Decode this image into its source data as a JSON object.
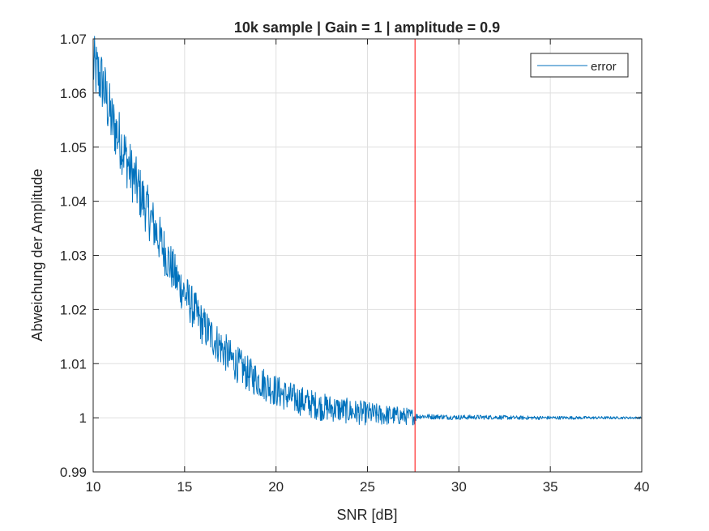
{
  "chart_data": {
    "type": "line",
    "title": "10k sample | Gain = 1 | amplitude = 0.9",
    "xlabel": "SNR [dB]",
    "ylabel": "Abweichung der Amplitude",
    "xlim": [
      10,
      40
    ],
    "ylim": [
      0.99,
      1.07
    ],
    "xticks": [
      10,
      15,
      20,
      25,
      30,
      35,
      40
    ],
    "xtick_labels": [
      "10",
      "15",
      "20",
      "25",
      "30",
      "35",
      "40"
    ],
    "yticks": [
      0.99,
      1.0,
      1.01,
      1.02,
      1.03,
      1.04,
      1.05,
      1.06,
      1.07
    ],
    "ytick_labels": [
      "0.99",
      "1",
      "1.01",
      "1.02",
      "1.03",
      "1.04",
      "1.05",
      "1.06",
      "1.07"
    ],
    "grid": true,
    "legend_position": "top-right",
    "series": [
      {
        "name": "error",
        "color": "#0072BD",
        "x": [
          10,
          10.5,
          11,
          11.5,
          12,
          12.5,
          13,
          13.5,
          14,
          14.5,
          15,
          15.5,
          16,
          16.5,
          17,
          17.5,
          18,
          18.5,
          19,
          19.5,
          20,
          20.5,
          21,
          21.5,
          22,
          22.5,
          23,
          23.5,
          24,
          24.5,
          25,
          25.5,
          26,
          26.5,
          27,
          27.5,
          28,
          28.5,
          29,
          29.5,
          30,
          31,
          32,
          33,
          34,
          35,
          36,
          37,
          38,
          39,
          40
        ],
        "y": [
          1.065,
          1.062,
          1.055,
          1.051,
          1.046,
          1.042,
          1.038,
          1.034,
          1.03,
          1.026,
          1.023,
          1.02,
          1.017,
          1.015,
          1.013,
          1.011,
          1.0095,
          1.008,
          1.007,
          1.006,
          1.005,
          1.0042,
          1.0035,
          1.003,
          1.0025,
          1.002,
          1.0018,
          1.0015,
          1.0012,
          1.001,
          1.0008,
          1.0006,
          1.0005,
          1.0004,
          1.0003,
          1.0002,
          1.0003,
          1.0002,
          1.0002,
          1.0001,
          1.0001,
          1.0001,
          1.0001,
          1.0,
          1.0,
          1.0,
          1.0,
          1.0,
          1.0,
          1.0,
          1.0
        ],
        "noise_amplitude_at_x": [
          [
            10,
            0.006
          ],
          [
            15,
            0.004
          ],
          [
            20,
            0.003
          ],
          [
            25,
            0.0022
          ],
          [
            27.6,
            0.0015
          ],
          [
            27.7,
            0.0005
          ],
          [
            32,
            0.0004
          ],
          [
            40,
            0.0002
          ]
        ]
      }
    ],
    "annotations": [
      {
        "type": "vertical-line",
        "x": 27.6,
        "color": "#ff0000"
      }
    ]
  }
}
